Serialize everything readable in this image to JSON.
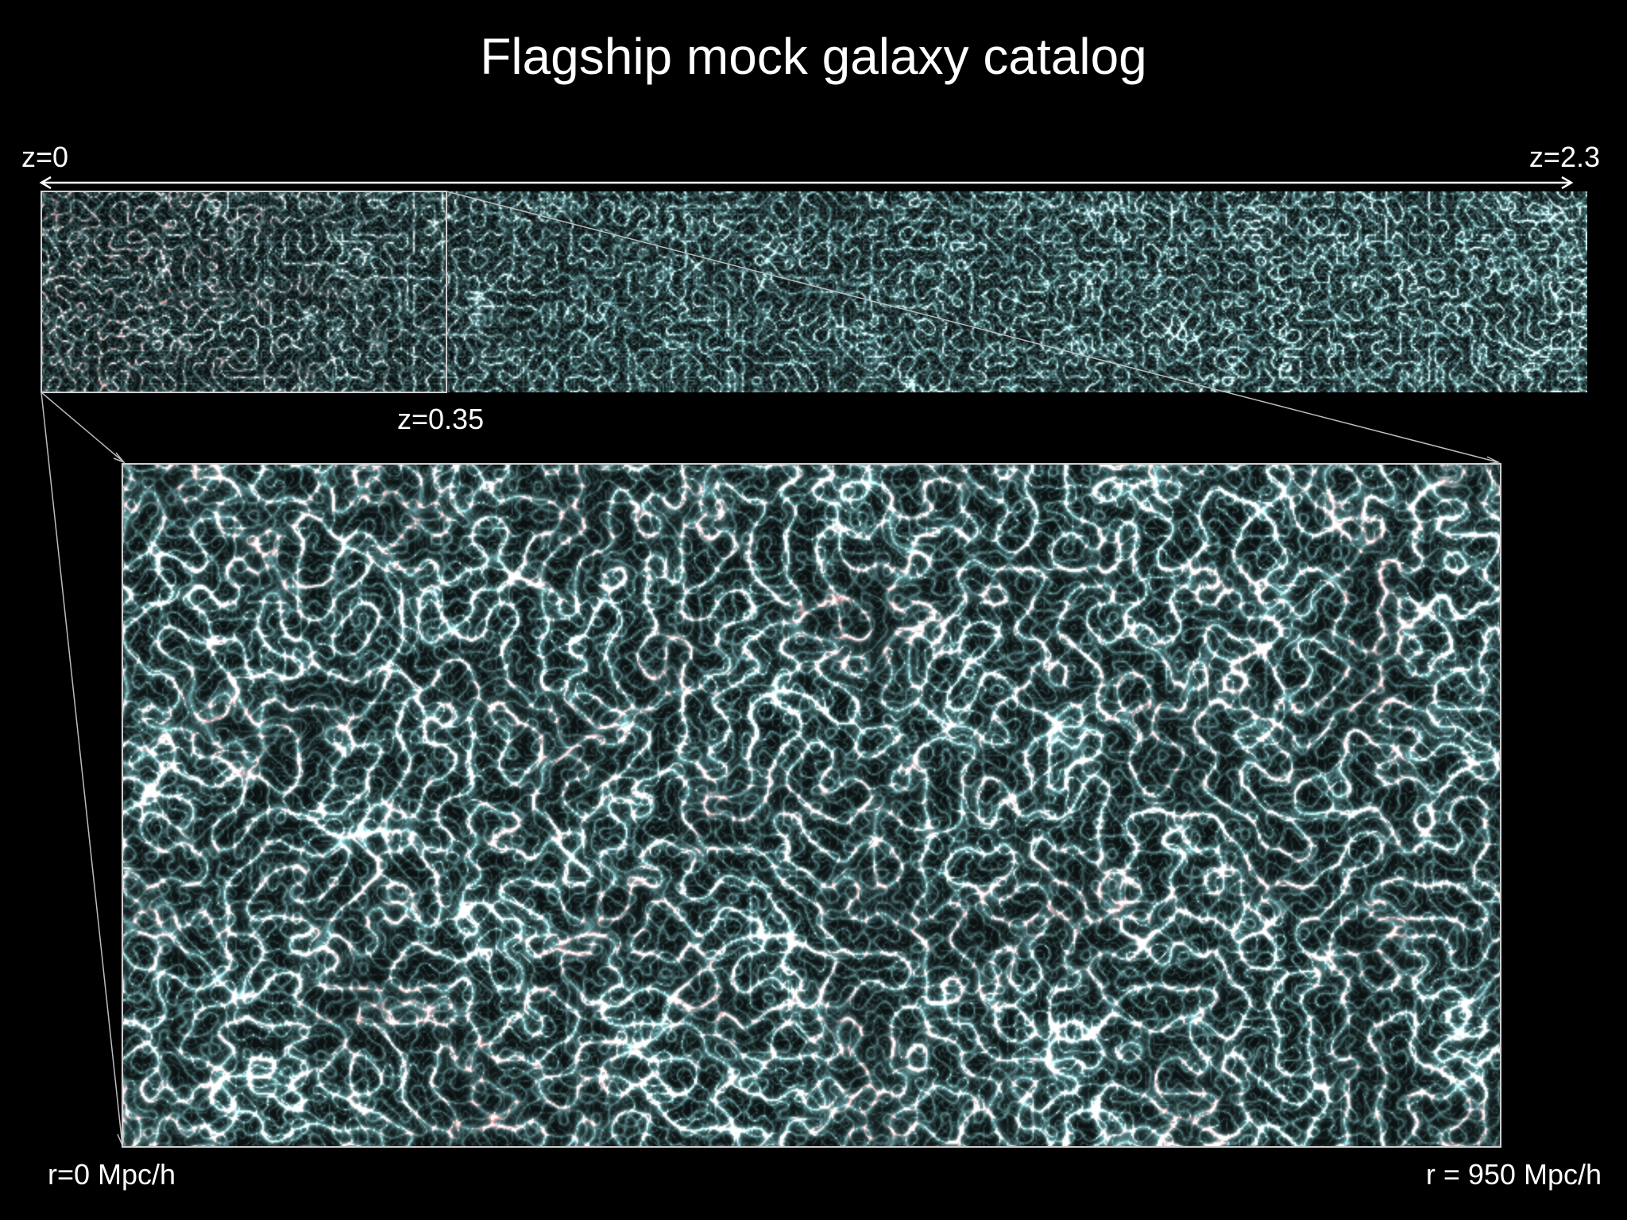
{
  "title": "Flagship mock galaxy catalog",
  "labels": {
    "z_start": "z=0",
    "z_end": "z=2.3",
    "z_zoom": "z=0.35",
    "r_start": "r=0 Mpc/h",
    "r_end": "r = 950 Mpc/h"
  },
  "colors": {
    "background": "#000000",
    "filament": "#8fd8dc",
    "cluster": "#e8504f",
    "outline": "#cfcfcf",
    "text": "#ffffff"
  }
}
